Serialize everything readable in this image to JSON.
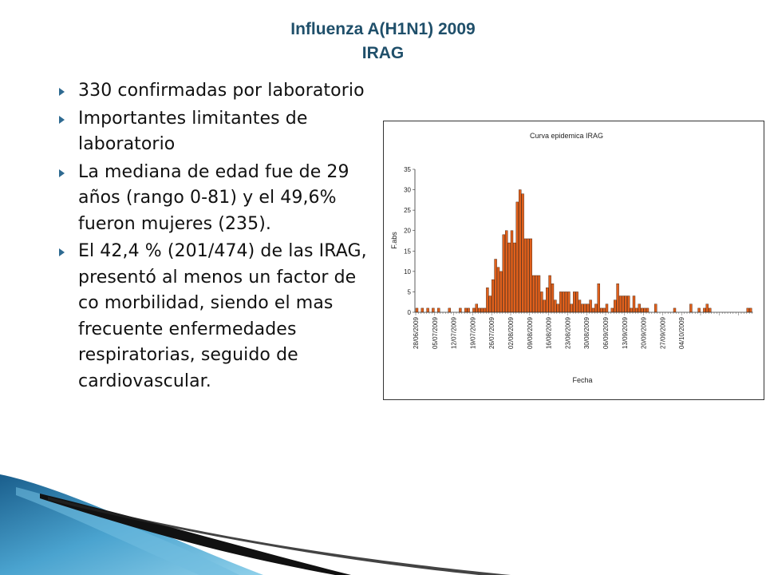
{
  "slide": {
    "title_line1": "Influenza A(H1N1) 2009",
    "title_line2": "IRAG",
    "bullets": [
      "330 confirmadas por laboratorio",
      "Importantes limitantes de laboratorio",
      "La mediana de edad fue de 29 años (rango 0-81) y el 49,6% fueron mujeres (235).",
      "El 42,4 %  (201/474) de las IRAG, presentó al menos un factor de  co morbilidad, siendo el mas frecuente enfermedades respiratorias, seguido de cardiovascular."
    ]
  },
  "chart_data": {
    "type": "bar",
    "title": "Curva epidemica IRAG",
    "xlabel": "Fecha",
    "ylabel": "F.abs",
    "ylim": [
      0,
      35
    ],
    "yticks": [
      0,
      5,
      10,
      15,
      20,
      25,
      30,
      35
    ],
    "x_start": "28/06/2009",
    "x_tick_labels": [
      "28/06/2009",
      "05/07/2009",
      "12/07/2009",
      "19/07/2009",
      "26/07/2009",
      "02/08/2009",
      "09/08/2009",
      "16/08/2009",
      "23/08/2009",
      "30/08/2009",
      "06/09/2009",
      "13/09/2009",
      "20/09/2009",
      "27/09/2009",
      "04/10/2009"
    ],
    "bar_color": "#e0601c",
    "values": [
      1,
      0,
      1,
      0,
      1,
      0,
      1,
      0,
      1,
      0,
      0,
      0,
      1,
      0,
      0,
      0,
      1,
      0,
      1,
      1,
      0,
      1,
      2,
      1,
      1,
      1,
      6,
      4,
      8,
      13,
      11,
      10,
      19,
      20,
      17,
      20,
      17,
      27,
      30,
      29,
      18,
      18,
      18,
      9,
      9,
      9,
      5,
      3,
      6,
      9,
      7,
      3,
      2,
      5,
      5,
      5,
      5,
      2,
      5,
      5,
      3,
      2,
      2,
      2,
      3,
      1,
      2,
      7,
      1,
      1,
      2,
      0,
      1,
      3,
      7,
      4,
      4,
      4,
      4,
      1,
      4,
      1,
      2,
      1,
      1,
      1,
      0,
      0,
      2,
      0,
      0,
      0,
      0,
      0,
      0,
      1,
      0,
      0,
      0,
      0,
      0,
      2,
      0,
      0,
      1,
      0,
      1,
      2,
      1,
      0,
      0,
      0,
      0,
      0,
      0,
      0,
      0,
      0,
      0,
      0,
      0,
      0,
      1,
      1
    ]
  }
}
